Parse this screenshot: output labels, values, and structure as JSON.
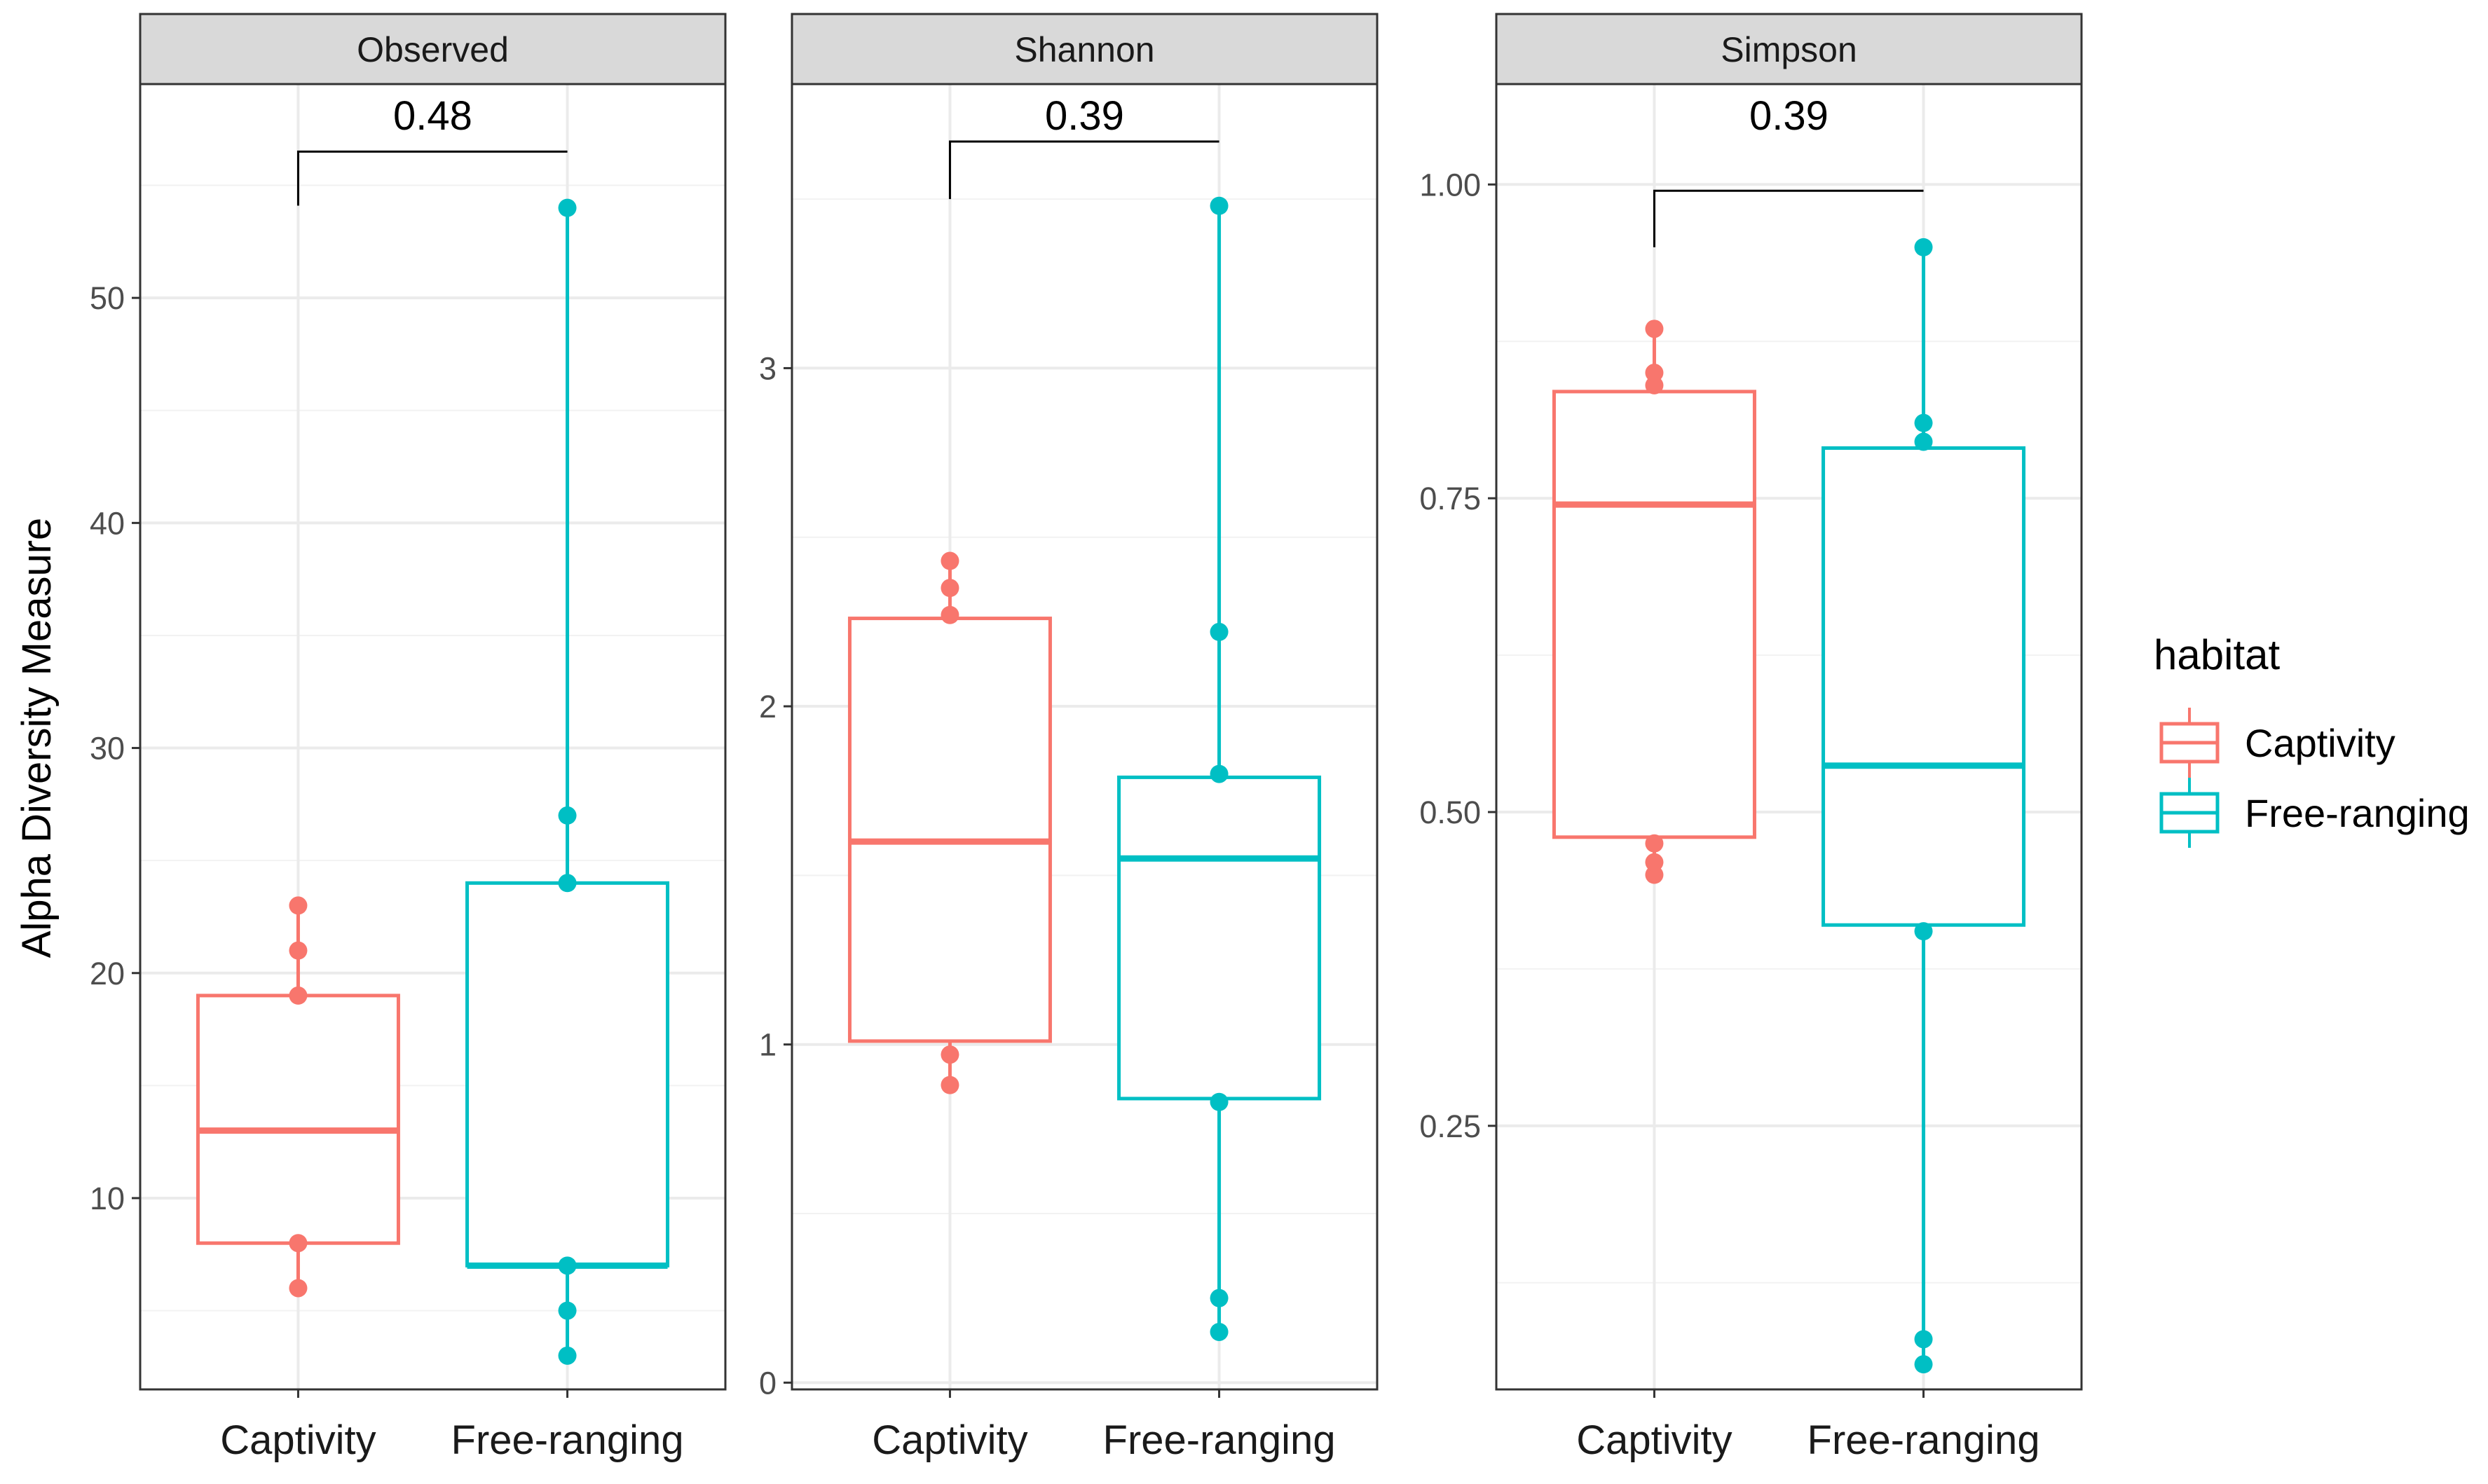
{
  "chart_data": {
    "type": "boxplot",
    "ylabel": "Alpha Diversity Measure",
    "categories": [
      "Captivity",
      "Free-ranging"
    ],
    "legend": {
      "title": "habitat",
      "position": "right",
      "entries": [
        {
          "label": "Captivity",
          "color": "#F8766D"
        },
        {
          "label": "Free-ranging",
          "color": "#00BFC4"
        }
      ]
    },
    "facets": [
      {
        "name": "Observed",
        "ylim": [
          1.5,
          59.5
        ],
        "yticks": [
          10,
          20,
          30,
          40,
          50
        ],
        "ytick_labels": [
          "10",
          "20",
          "30",
          "40",
          "50"
        ],
        "minor_ticks": [
          5,
          15,
          25,
          35,
          45,
          55
        ],
        "pvalue": "0.48",
        "bracket_y": 56.5,
        "bracket_left_bottom": 54.1,
        "bracket_right_bottom": 56.5,
        "groups": [
          {
            "name": "Captivity",
            "q1": 8,
            "median": 13,
            "q3": 19,
            "whisker_low": 6,
            "whisker_high": 23,
            "points": [
              6,
              8,
              19,
              21,
              23
            ]
          },
          {
            "name": "Free-ranging",
            "q1": 7,
            "median": 7,
            "q3": 24,
            "whisker_low": 3,
            "whisker_high": 54,
            "points": [
              3,
              5,
              7,
              24,
              27,
              54
            ]
          }
        ]
      },
      {
        "name": "Shannon",
        "ylim": [
          -0.02,
          3.84
        ],
        "yticks": [
          0,
          1,
          2,
          3
        ],
        "ytick_labels": [
          "0",
          "1",
          "2",
          "3"
        ],
        "minor_ticks": [
          0.5,
          1.5,
          2.5,
          3.5
        ],
        "pvalue": "0.39",
        "bracket_y": 3.67,
        "bracket_left_bottom": 3.5,
        "bracket_right_bottom": 3.67,
        "groups": [
          {
            "name": "Captivity",
            "q1": 1.01,
            "median": 1.6,
            "q3": 2.26,
            "whisker_low": 0.88,
            "whisker_high": 2.43,
            "points": [
              0.88,
              0.97,
              2.27,
              2.35,
              2.43
            ]
          },
          {
            "name": "Free-ranging",
            "q1": 0.84,
            "median": 1.55,
            "q3": 1.79,
            "whisker_low": 0.15,
            "whisker_high": 3.48,
            "points": [
              0.15,
              0.25,
              0.83,
              1.8,
              2.22,
              3.48
            ]
          }
        ]
      },
      {
        "name": "Simpson",
        "ylim": [
          0.04,
          1.08
        ],
        "yticks": [
          0.25,
          0.5,
          0.75,
          1.0
        ],
        "ytick_labels": [
          "0.25",
          "0.50",
          "0.75",
          "1.00"
        ],
        "minor_ticks": [
          0.125,
          0.375,
          0.625,
          0.875
        ],
        "pvalue": "0.39",
        "bracket_y": 0.995,
        "bracket_left_bottom": 0.95,
        "bracket_right_bottom": 0.995,
        "groups": [
          {
            "name": "Captivity",
            "q1": 0.48,
            "median": 0.745,
            "q3": 0.835,
            "whisker_low": 0.45,
            "whisker_high": 0.885,
            "points": [
              0.45,
              0.46,
              0.475,
              0.84,
              0.85,
              0.885
            ]
          },
          {
            "name": "Free-ranging",
            "q1": 0.41,
            "median": 0.537,
            "q3": 0.79,
            "whisker_low": 0.06,
            "whisker_high": 0.95,
            "points": [
              0.06,
              0.08,
              0.405,
              0.795,
              0.81,
              0.95
            ]
          }
        ]
      }
    ]
  }
}
